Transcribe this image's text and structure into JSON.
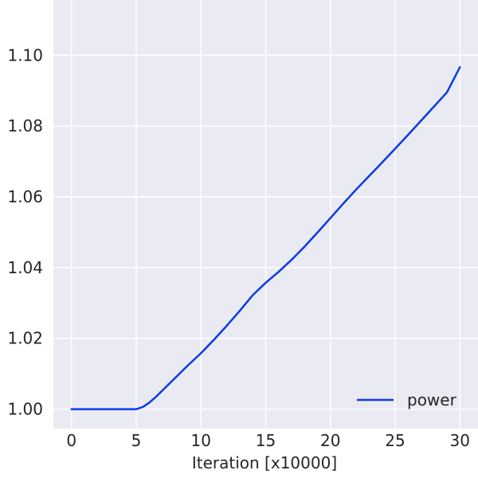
{
  "chart_data": {
    "type": "line",
    "title": "",
    "xlabel": "Iteration [x10000]",
    "ylabel": "",
    "xlim": [
      -1.4,
      31.4
    ],
    "ylim": [
      0.9945,
      1.1156
    ],
    "xticks": [
      0,
      5,
      10,
      15,
      20,
      25,
      30
    ],
    "xtick_labels": [
      "0",
      "5",
      "10",
      "15",
      "20",
      "25",
      "30"
    ],
    "yticks": [
      1.0,
      1.02,
      1.04,
      1.06,
      1.08,
      1.1
    ],
    "ytick_labels": [
      "1.00",
      "1.02",
      "1.04",
      "1.06",
      "1.08",
      "1.10"
    ],
    "grid": true,
    "legend_position": "lower-right",
    "background_color": "#eaeaf2",
    "grid_color": "#ffffff",
    "series": [
      {
        "name": "power",
        "color": "#0a3ae8",
        "x": [
          0,
          1,
          2,
          3,
          4,
          5,
          5.5,
          6,
          6.5,
          7,
          8,
          9,
          10,
          11,
          12,
          13,
          14,
          15,
          16,
          17,
          18,
          19,
          20,
          21,
          22,
          23,
          24,
          25,
          26,
          27,
          28,
          29,
          30
        ],
        "y": [
          1.0,
          1.0,
          1.0,
          1.0,
          1.0,
          1.0,
          1.0006,
          1.0018,
          1.0034,
          1.0052,
          1.0088,
          1.0124,
          1.0158,
          1.0196,
          1.0236,
          1.0278,
          1.0322,
          1.0357,
          1.0388,
          1.0422,
          1.0459,
          1.0499,
          1.054,
          1.0581,
          1.0621,
          1.0659,
          1.0697,
          1.0736,
          1.0775,
          1.0815,
          1.0855,
          1.0895,
          1.0966
        ]
      }
    ]
  }
}
